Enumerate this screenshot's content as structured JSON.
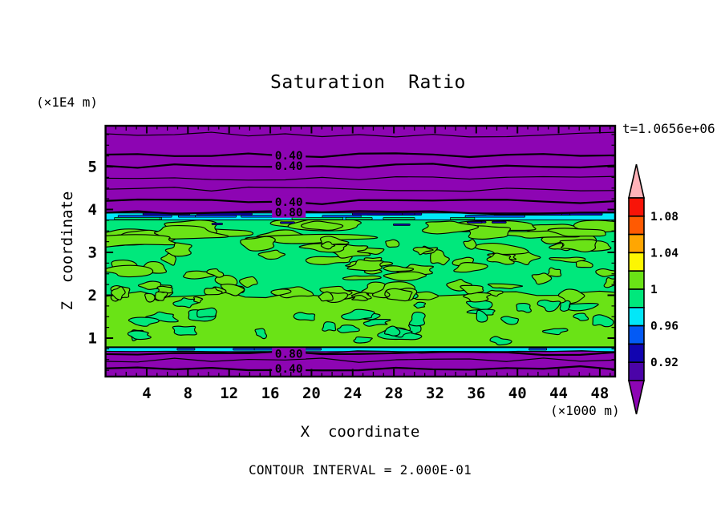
{
  "chart_data": {
    "type": "heatmap",
    "variant": "filled-contour-plot",
    "title": "Saturation  Ratio",
    "xlabel": "X  coordinate",
    "ylabel": "Z  coordinate",
    "x_unit_label": "(×1000 m)",
    "y_unit_label": "(×1E4 m)",
    "time_label": "t=1.0656e+06",
    "footer": "CONTOUR INTERVAL = 2.000E-01",
    "contour_interval": 0.2,
    "xlim": [
      0,
      49.5
    ],
    "zlim": [
      0,
      5.95
    ],
    "x_ticks": [
      4,
      8,
      12,
      16,
      20,
      24,
      28,
      32,
      36,
      40,
      44,
      48
    ],
    "z_ticks": [
      1,
      2,
      3,
      4,
      5
    ],
    "contour_lines_z": [
      {
        "z": 5.75,
        "w": 1.2
      },
      {
        "z": 5.26,
        "w": 2.2
      },
      {
        "z": 5.02,
        "w": 2.2
      },
      {
        "z": 4.72,
        "w": 1.2
      },
      {
        "z": 4.48,
        "w": 1.2
      },
      {
        "z": 4.18,
        "w": 2.2
      },
      {
        "z": 3.93,
        "w": 2.2
      },
      {
        "z": 0.64,
        "w": 2.2
      },
      {
        "z": 0.48,
        "w": 1.2
      },
      {
        "z": 0.29,
        "w": 2.2
      }
    ],
    "contour_line_labels": [
      {
        "text": "0.40",
        "x": 17.8,
        "z": 5.26
      },
      {
        "text": "0.40",
        "x": 17.8,
        "z": 5.02
      },
      {
        "text": "0.40",
        "x": 17.8,
        "z": 4.18
      },
      {
        "text": "0.80",
        "x": 17.8,
        "z": 3.93
      },
      {
        "text": "0.80",
        "x": 17.8,
        "z": 0.64
      },
      {
        "text": "0.40",
        "x": 17.8,
        "z": 0.29
      }
    ],
    "field_bands": [
      {
        "z_range": [
          3.95,
          5.95
        ],
        "value": "< 0.90",
        "appearance": "purple with horizontal line contours 0.2-0.8"
      },
      {
        "z_range": [
          3.77,
          3.95
        ],
        "value": "0.92-0.98",
        "appearance": "thin cyan strip with navy/blue streaks"
      },
      {
        "z_range": [
          0.8,
          3.77
        ],
        "value": "0.98-1.02",
        "appearance": "speckled green and spring-green blobs"
      },
      {
        "z_range": [
          0.66,
          0.8
        ],
        "value": "0.94-0.98",
        "appearance": "thin cyan sliver with blue streaks"
      },
      {
        "z_range": [
          0.0,
          0.66
        ],
        "value": "< 0.90",
        "appearance": "purple with line contours 0.4, 0.6, 0.8"
      }
    ],
    "colorbar": {
      "labels": [
        "1.08",
        "1.04",
        "1",
        "0.96",
        "0.92"
      ],
      "label_boundary_indices": [
        1,
        3,
        5,
        7,
        9
      ],
      "segment_width": 0.02,
      "colors_top_to_bottom": [
        "#ffb2b8",
        "#f81408",
        "#ff5a02",
        "#ffa602",
        "#fdf602",
        "#6ae316",
        "#00e87c",
        "#02e7f8",
        "#035af5",
        "#1104b0",
        "#4b04a8",
        "#8d05b3"
      ]
    },
    "palette": {
      "purple": "#8d05b3",
      "green": "#6ae316",
      "spring": "#00e87c",
      "cyan": "#02e7f8",
      "blue": "#035af5",
      "navy": "#1104b0",
      "line": "#000000"
    }
  }
}
